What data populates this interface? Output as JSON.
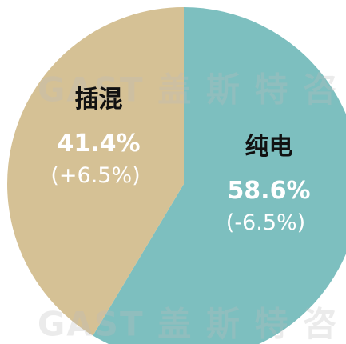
{
  "chart_data": {
    "type": "pie",
    "watermark": "GAST 盖 斯 特 咨",
    "categories": [
      "纯电",
      "插混"
    ],
    "values": [
      58.6,
      41.4
    ],
    "value_labels": [
      "58.6%",
      "41.4%"
    ],
    "changes": [
      -6.5,
      6.5
    ],
    "change_labels": [
      "(-6.5%)",
      "(+6.5%)"
    ],
    "colors": [
      "#7dbfbf",
      "#d5c195"
    ]
  }
}
